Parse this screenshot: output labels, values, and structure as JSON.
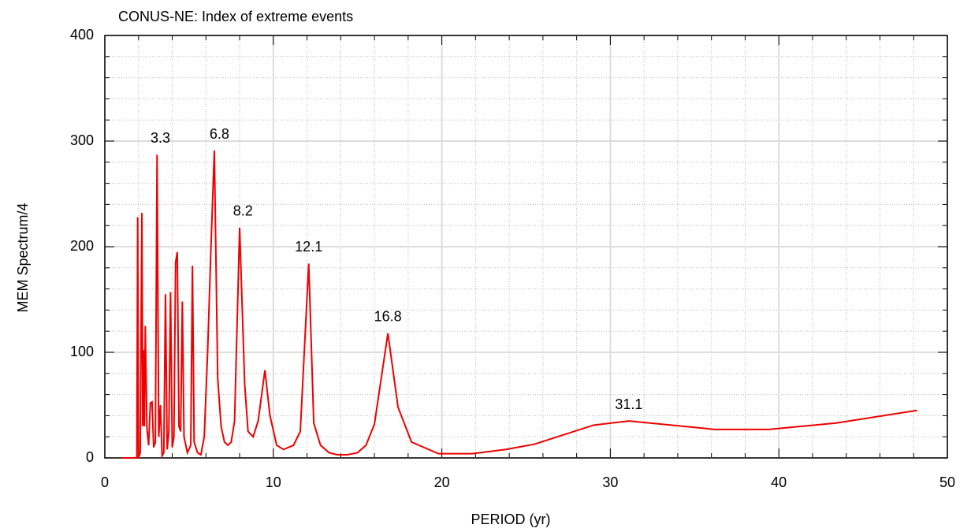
{
  "chart_data": {
    "type": "line",
    "title": "CONUS-NE: Index of extreme events",
    "x_label": "PERIOD (yr)",
    "y_label": "MEM Spectrum/4",
    "xlim": [
      0,
      50
    ],
    "xticks": [
      0,
      10,
      20,
      30,
      40,
      50
    ],
    "ylim": [
      0,
      400
    ],
    "yticks": [
      0,
      100,
      200,
      300,
      400
    ],
    "x_minor_step": 2,
    "y_minor_step": 20,
    "grid": true,
    "series": [
      {
        "color": "#ee0000",
        "x": [
          1.0,
          1.9,
          1.95,
          2.0,
          2.1,
          2.2,
          2.25,
          2.3,
          2.35,
          2.4,
          2.5,
          2.6,
          2.7,
          2.8,
          2.9,
          3.0,
          3.1,
          3.2,
          3.3,
          3.4,
          3.5,
          3.6,
          3.7,
          3.8,
          3.9,
          4.0,
          4.1,
          4.2,
          4.3,
          4.4,
          4.5,
          4.6,
          4.7,
          4.9,
          5.1,
          5.2,
          5.3,
          5.5,
          5.7,
          5.9,
          6.1,
          6.3,
          6.5,
          6.7,
          6.9,
          7.1,
          7.3,
          7.5,
          7.7,
          8.0,
          8.3,
          8.5,
          8.8,
          9.1,
          9.5,
          9.8,
          10.2,
          10.6,
          11.2,
          11.6,
          12.1,
          12.4,
          12.8,
          13.3,
          13.8,
          14.4,
          15.0,
          15.5,
          16.0,
          16.8,
          17.4,
          18.2,
          19.8,
          21.8,
          23.8,
          25.5,
          29.0,
          31.1,
          36.2,
          39.4,
          43.4,
          48.2
        ],
        "values": [
          0,
          0,
          228,
          0,
          5,
          232,
          30,
          102,
          30,
          125,
          28,
          12,
          52,
          53,
          10,
          15,
          287,
          20,
          50,
          2,
          5,
          155,
          8,
          25,
          157,
          10,
          20,
          185,
          195,
          30,
          25,
          148,
          20,
          5,
          12,
          182,
          15,
          5,
          3,
          20,
          100,
          200,
          291,
          75,
          30,
          15,
          12,
          15,
          35,
          218,
          70,
          25,
          20,
          35,
          83,
          40,
          12,
          8,
          12,
          25,
          184,
          33,
          12,
          5,
          3,
          3,
          5,
          12,
          32,
          118,
          48,
          15,
          4,
          4,
          8,
          13,
          31,
          35,
          27,
          27,
          33,
          45
        ]
      }
    ],
    "peak_labels": [
      {
        "value": 3.3,
        "label": "3.3"
      },
      {
        "value": 6.8,
        "label": "6.8"
      },
      {
        "value": 8.2,
        "label": "8.2"
      },
      {
        "value": 12.1,
        "label": "12.1"
      },
      {
        "value": 16.8,
        "label": "16.8"
      },
      {
        "value": 31.1,
        "label": "31.1"
      }
    ]
  }
}
